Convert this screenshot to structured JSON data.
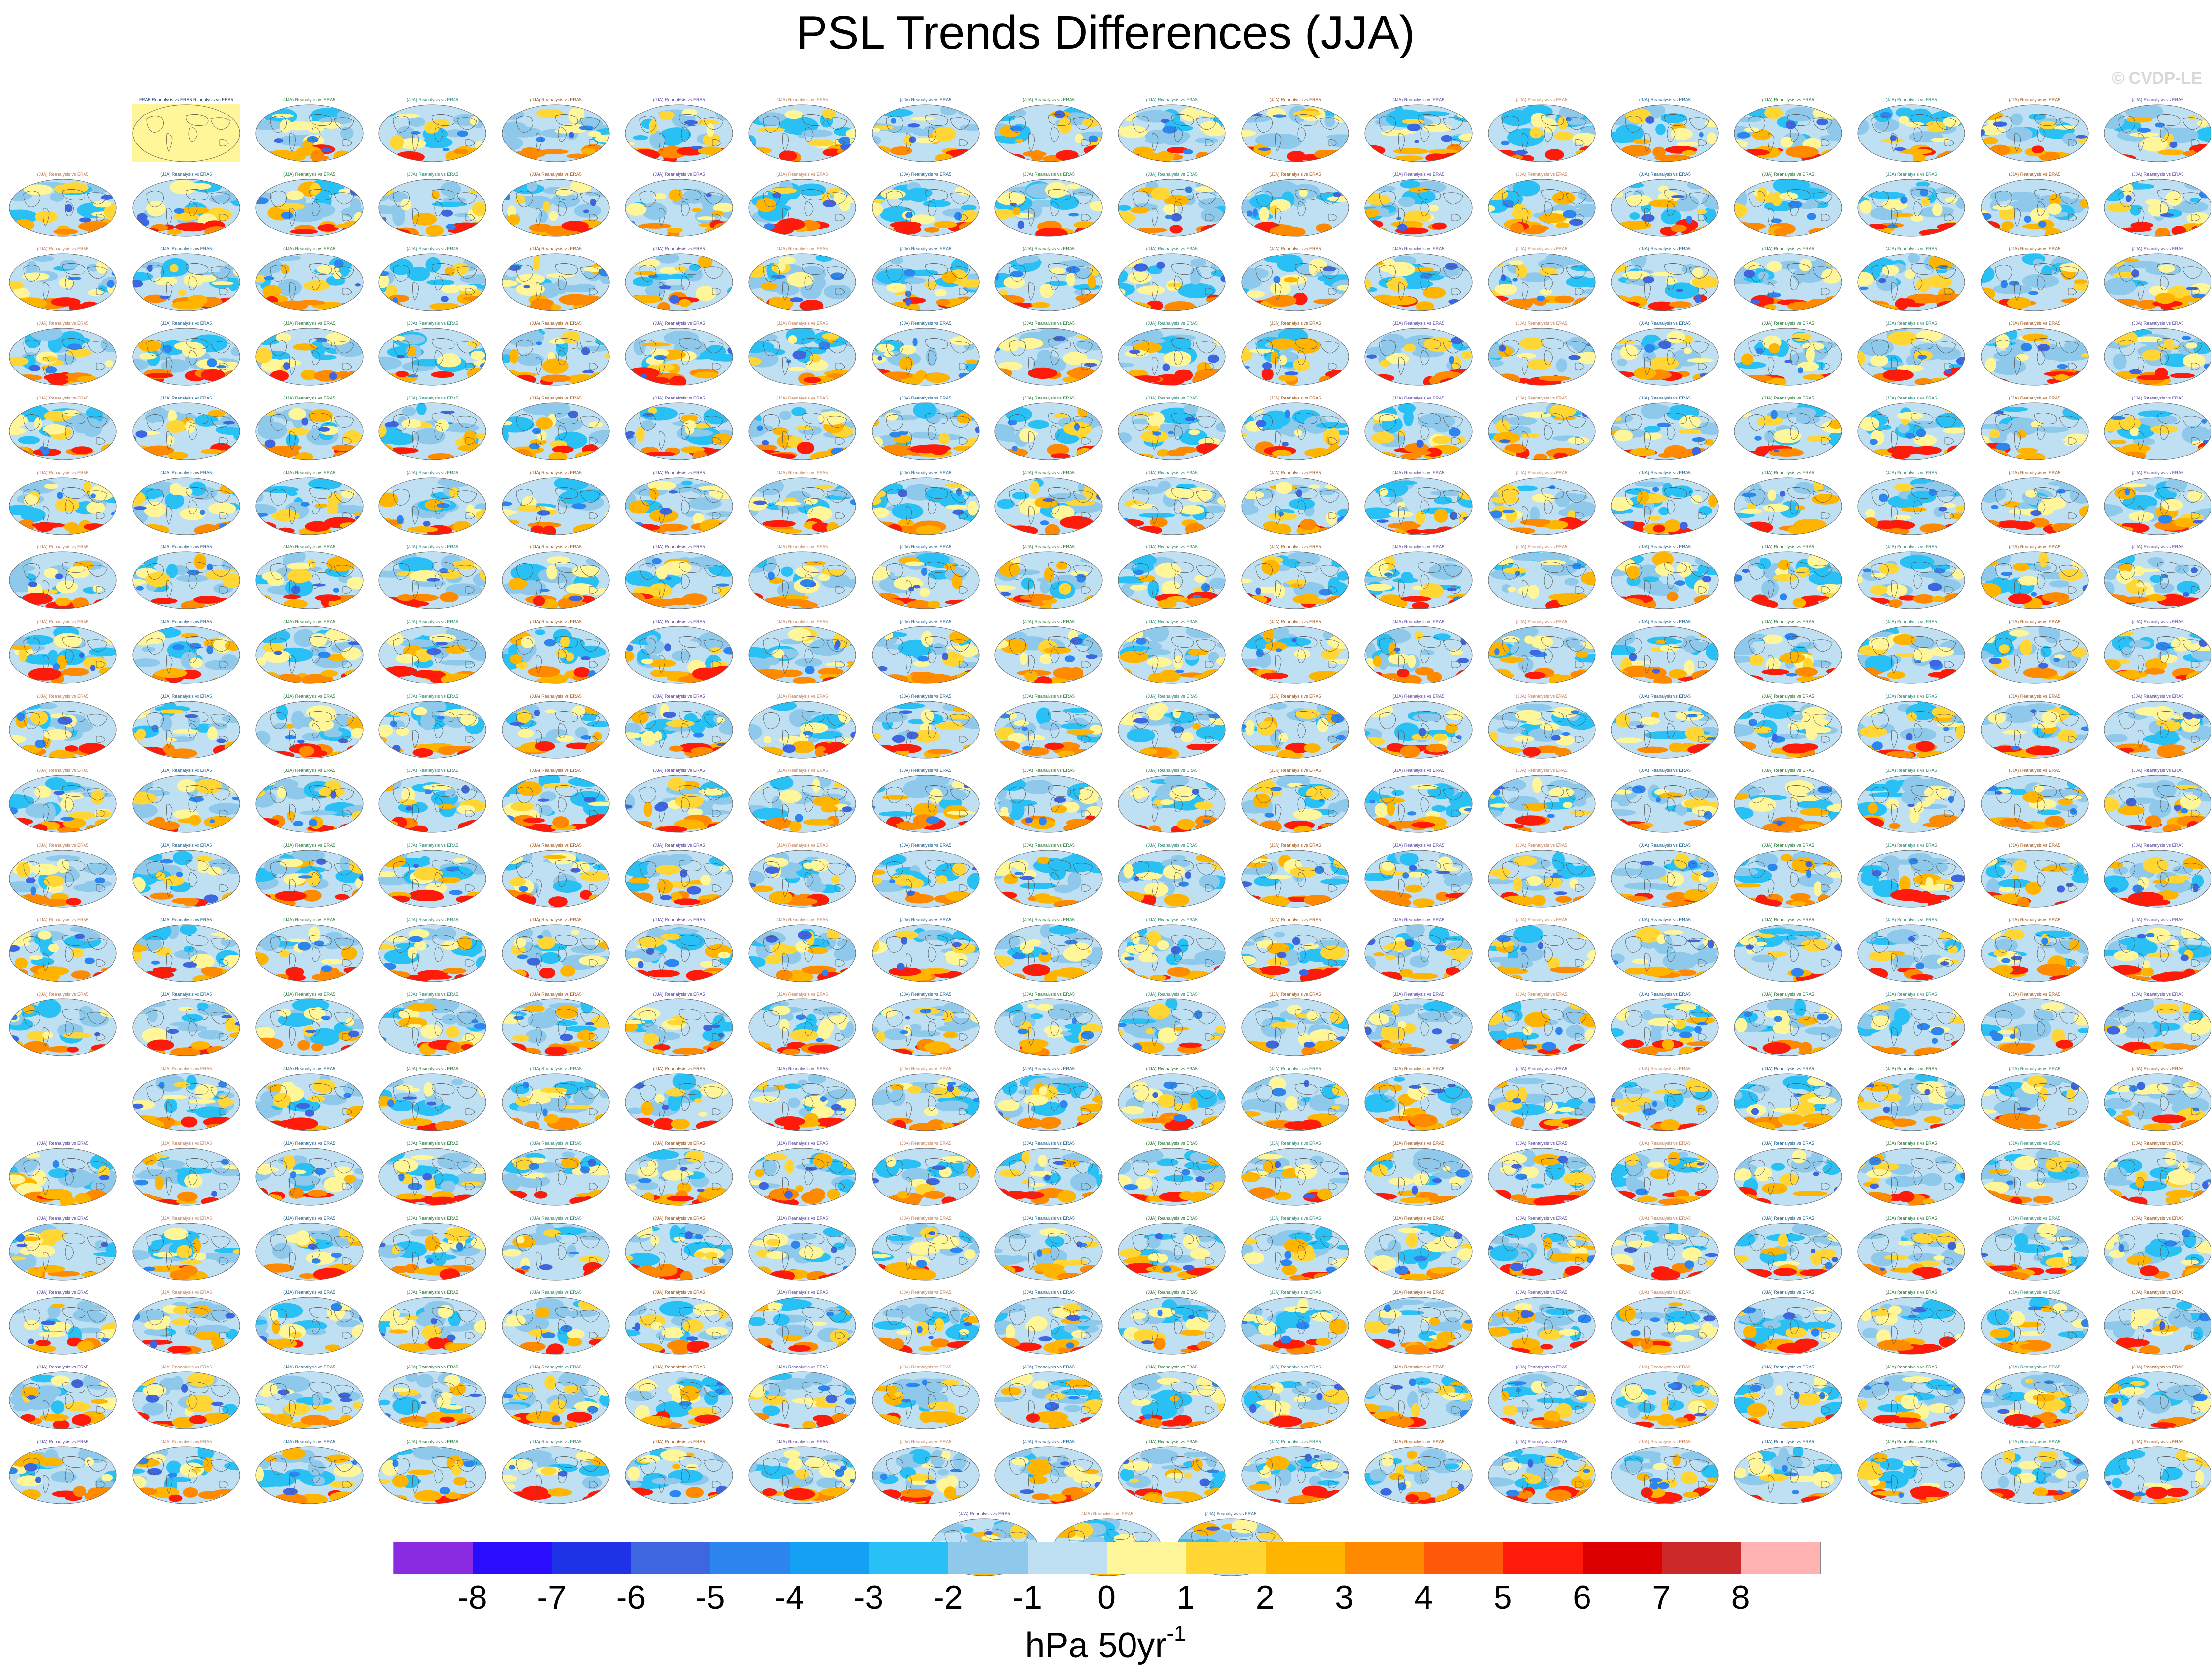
{
  "figure": {
    "title": "PSL Trends Differences (JJA)",
    "credit": "© CVDP-LE",
    "units_main": "hPa 50yr",
    "units_exponent": "-1"
  },
  "panels": {
    "caption_first": "ERA5 Reanalysis vs ERA5 Reanalysis vs ERA5",
    "caption_model": "(JJA) Reanalysis vs ERA5",
    "grid_columns": 18,
    "grid_rows": 19,
    "empty_cells": [
      [
        0,
        0
      ],
      [
        13,
        0
      ]
    ],
    "extra_row_panels": 3,
    "pattern_seed_note": "map panels show global PSL trend difference patterns"
  },
  "colorbar": {
    "colors": [
      "#8a2be2",
      "#2a0dfe",
      "#1e32e6",
      "#3d66e0",
      "#2d86f0",
      "#14a0f5",
      "#28c0f5",
      "#8ec8ea",
      "#bfe0f2",
      "#fff69a",
      "#ffd633",
      "#ffb400",
      "#ff8a00",
      "#ff5a0a",
      "#ff1a0a",
      "#dc0000",
      "#cc2a2a",
      "#ffb3b3"
    ],
    "ticks": [
      "-8",
      "-7",
      "-6",
      "-5",
      "-4",
      "-3",
      "-2",
      "-1",
      "0",
      "1",
      "2",
      "3",
      "4",
      "5",
      "6",
      "7",
      "8"
    ]
  }
}
